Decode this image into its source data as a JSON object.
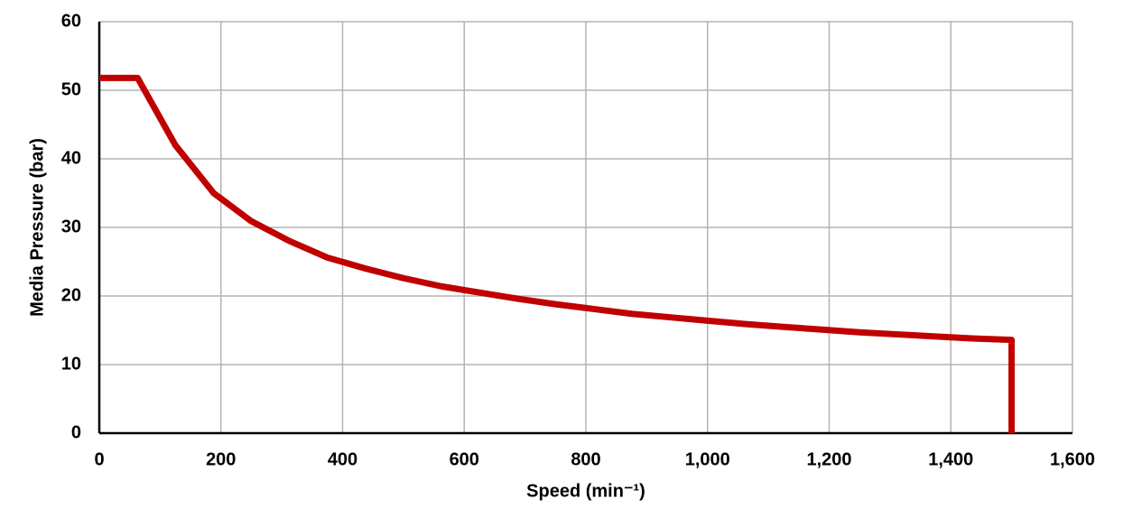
{
  "chart_data": {
    "type": "line",
    "x_label": "Speed (min⁻¹)",
    "y_label": "Media Pressure (bar)",
    "x": [
      0,
      63,
      125,
      188,
      250,
      313,
      375,
      438,
      500,
      563,
      625,
      688,
      750,
      813,
      875,
      938,
      1000,
      1063,
      1125,
      1188,
      1250,
      1313,
      1375,
      1438,
      1500,
      1500
    ],
    "values": [
      51.8,
      51.8,
      42,
      35,
      30.9,
      28,
      25.6,
      24,
      22.6,
      21.4,
      20.5,
      19.6,
      18.8,
      18.1,
      17.4,
      16.9,
      16.4,
      15.9,
      15.5,
      15.1,
      14.7,
      14.4,
      14.1,
      13.8,
      13.6,
      0
    ],
    "color": "#c00000",
    "xlim": [
      0,
      1600
    ],
    "ylim": [
      0,
      60
    ],
    "xticks": [
      0,
      200,
      400,
      600,
      800,
      {
        "value": 1000,
        "label": "1,000"
      },
      {
        "value": 1200,
        "label": "1,200"
      },
      {
        "value": 1400,
        "label": "1,400"
      },
      {
        "value": 1600,
        "label": "1,600"
      }
    ],
    "yticks": [
      0,
      10,
      20,
      30,
      40,
      50,
      60
    ],
    "grid": true
  }
}
